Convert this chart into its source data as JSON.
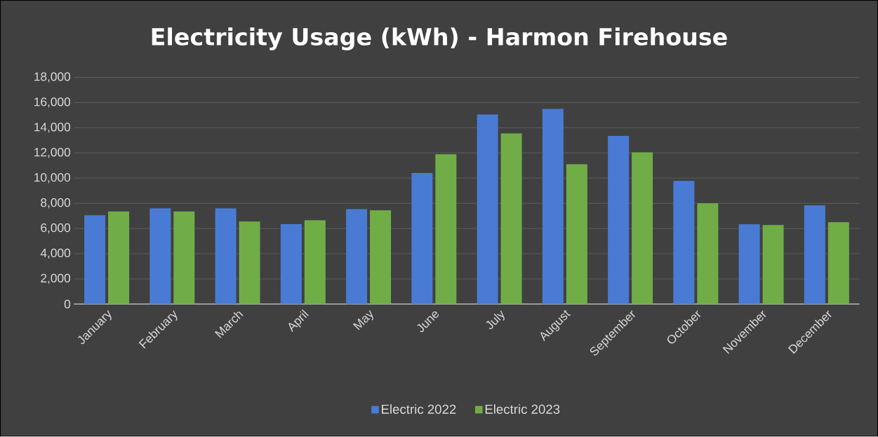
{
  "chart_data": {
    "type": "bar",
    "title": "Electricity Usage (kWh) - Harmon Firehouse",
    "categories": [
      "January",
      "February",
      "March",
      "April",
      "May",
      "June",
      "July",
      "August",
      "September",
      "October",
      "November",
      "December"
    ],
    "series": [
      {
        "name": "Electric 2022",
        "color": "#4a7bd4",
        "values": [
          7050,
          7600,
          7600,
          6350,
          7550,
          10400,
          15050,
          15500,
          13350,
          9780,
          6330,
          7830
        ]
      },
      {
        "name": "Electric 2023",
        "color": "#70ad47",
        "values": [
          7350,
          7350,
          6550,
          6650,
          7450,
          11900,
          13550,
          11100,
          12050,
          8000,
          6280,
          6500
        ]
      }
    ],
    "ylim": [
      0,
      18000
    ],
    "yticks": [
      0,
      {
        "value": 2000,
        "label": "2,000"
      },
      {
        "value": 4000,
        "label": "4,000"
      },
      {
        "value": 6000,
        "label": "6,000"
      },
      {
        "value": 8000,
        "label": "8,000"
      },
      {
        "value": 10000,
        "label": "10,000"
      },
      {
        "value": 12000,
        "label": "12,000"
      },
      {
        "value": 14000,
        "label": "14,000"
      },
      {
        "value": 16000,
        "label": "16,000"
      },
      {
        "value": 18000,
        "label": "18,000"
      }
    ],
    "grid": "y",
    "legend": "bottom"
  }
}
